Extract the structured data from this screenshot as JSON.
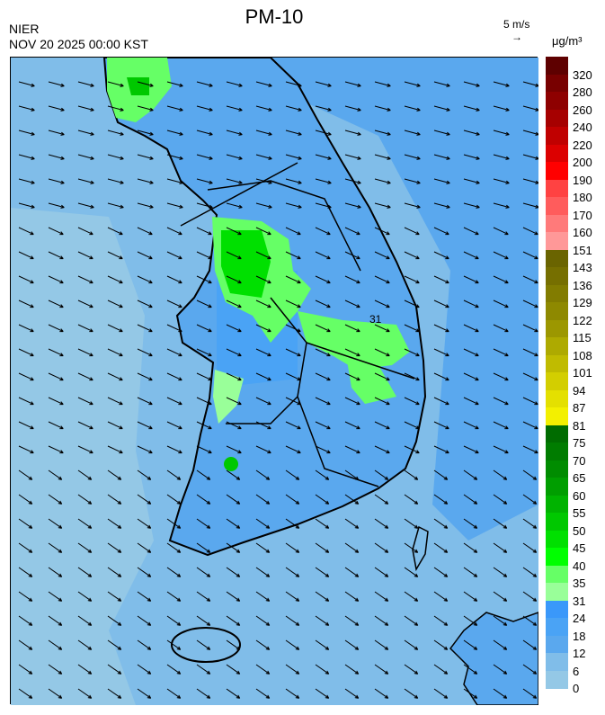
{
  "header": {
    "title": "PM-10",
    "organization": "NIER",
    "timestamp": "NOV 20 2025 00:00 KST",
    "wind_reference": "5 m/s",
    "wind_reference_arrow": "→",
    "unit": "μg/m³"
  },
  "map": {
    "region": "Korean Peninsula",
    "contour_label": "31",
    "background_level_color": "#5aa8ee"
  },
  "legend": {
    "labels": [
      "320",
      "280",
      "260",
      "240",
      "220",
      "200",
      "190",
      "180",
      "170",
      "160",
      "151",
      "143",
      "136",
      "129",
      "122",
      "115",
      "108",
      "101",
      "94",
      "87",
      "81",
      "75",
      "70",
      "65",
      "60",
      "55",
      "50",
      "45",
      "40",
      "35",
      "31",
      "24",
      "18",
      "12",
      "6",
      "0"
    ],
    "colors": [
      "#5e0000",
      "#780000",
      "#8e0000",
      "#a60000",
      "#c00000",
      "#dc0000",
      "#ff0000",
      "#ff4242",
      "#ff5c5c",
      "#ff7a7a",
      "#ff9898",
      "#6a6400",
      "#766f00",
      "#827c00",
      "#8e8900",
      "#9c9700",
      "#aeaa00",
      "#c0bb00",
      "#d3ce00",
      "#e4e000",
      "#f3f000",
      "#006c00",
      "#007c00",
      "#008c00",
      "#009e00",
      "#00b300",
      "#00c800",
      "#00e000",
      "#00ff00",
      "#66ff66",
      "#99ff99",
      "#3a98fa",
      "#4aa3f5",
      "#5aa8ee",
      "#80bde9",
      "#94c8e6"
    ]
  }
}
